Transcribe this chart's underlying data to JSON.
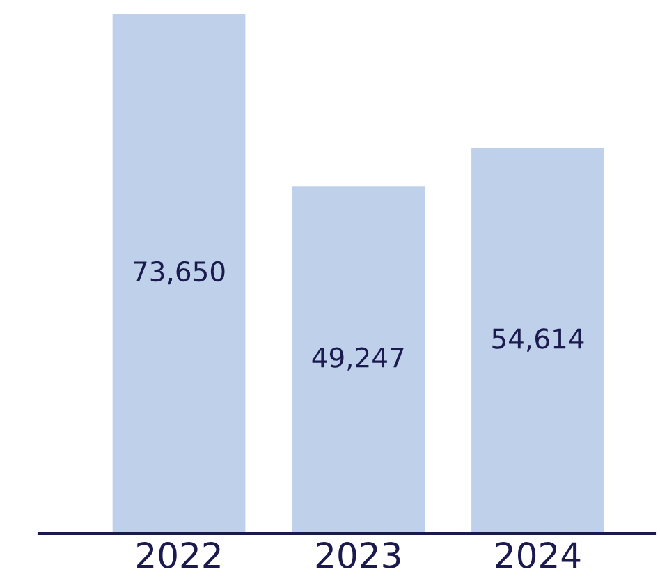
{
  "chart_data": {
    "type": "bar",
    "categories": [
      "2022",
      "2023",
      "2024"
    ],
    "values": [
      73650,
      49247,
      54614
    ],
    "color": "#bed0ea",
    "data_labels": true,
    "value_labels": [
      "73,650",
      "49,247",
      "54,614"
    ],
    "grid": false,
    "legend": false
  }
}
